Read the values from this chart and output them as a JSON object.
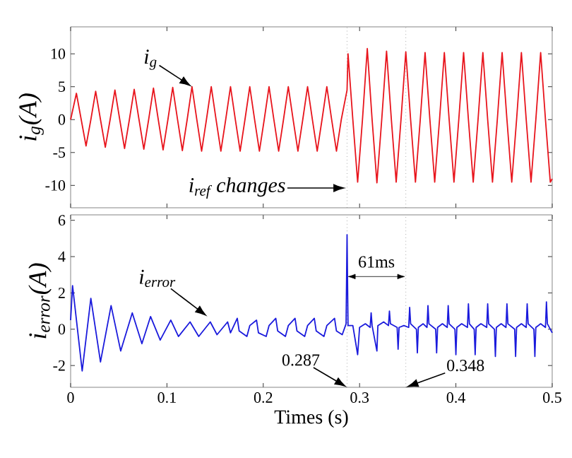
{
  "chart_data": [
    {
      "type": "line",
      "ylabel": "i$_{g}$(A)",
      "xlim": [
        0,
        0.5
      ],
      "ylim": [
        -13.4,
        14.1
      ],
      "xticks": [
        0,
        0.1,
        0.2,
        0.3,
        0.4,
        0.5
      ],
      "yticks": [
        -10,
        -5,
        0,
        5,
        10
      ],
      "tick_labels": "y",
      "series": [
        {
          "color": "#e8141c",
          "x": [
            0,
            0.006,
            0.011,
            0.016,
            0.021,
            0.026,
            0.031,
            0.036,
            0.041,
            0.046,
            0.051,
            0.056,
            0.061,
            0.066,
            0.071,
            0.076,
            0.081,
            0.086,
            0.091,
            0.096,
            0.101,
            0.106,
            0.111,
            0.116,
            0.121,
            0.126,
            0.131,
            0.136,
            0.141,
            0.146,
            0.151,
            0.156,
            0.161,
            0.166,
            0.171,
            0.176,
            0.181,
            0.186,
            0.191,
            0.196,
            0.201,
            0.206,
            0.211,
            0.216,
            0.221,
            0.226,
            0.231,
            0.236,
            0.241,
            0.246,
            0.251,
            0.256,
            0.261,
            0.266,
            0.271,
            0.276,
            0.281,
            0.287,
            0.288,
            0.293,
            0.298,
            0.303,
            0.308,
            0.313,
            0.318,
            0.323,
            0.328,
            0.333,
            0.338,
            0.343,
            0.348,
            0.353,
            0.358,
            0.363,
            0.368,
            0.373,
            0.378,
            0.383,
            0.388,
            0.393,
            0.398,
            0.403,
            0.408,
            0.413,
            0.418,
            0.423,
            0.428,
            0.433,
            0.438,
            0.443,
            0.448,
            0.453,
            0.458,
            0.463,
            0.468,
            0.473,
            0.478,
            0.483,
            0.488,
            0.493,
            0.498,
            0.5
          ],
          "values": [
            0,
            4.0,
            0,
            -4.0,
            0,
            4.3,
            0,
            -4.2,
            0,
            4.5,
            0,
            -4.4,
            0,
            4.6,
            0,
            -4.5,
            0,
            4.8,
            0,
            -4.6,
            0,
            4.9,
            0,
            -4.7,
            0,
            5.0,
            0,
            -4.8,
            0,
            5.0,
            0,
            -4.8,
            0,
            5.0,
            0,
            -4.8,
            0,
            5.0,
            0,
            -4.8,
            0,
            5.0,
            0,
            -4.8,
            0,
            5.0,
            0,
            -4.8,
            0,
            5.0,
            0,
            -4.8,
            0,
            5.0,
            0,
            -4.8,
            0,
            4.5,
            10.0,
            0,
            -9.5,
            0,
            10.8,
            0,
            -9.6,
            0,
            10.4,
            0,
            -9.5,
            0,
            10.3,
            0,
            -9.5,
            0,
            10.2,
            0,
            -9.5,
            0,
            10.2,
            0,
            -9.5,
            0,
            10.2,
            0,
            -9.5,
            0,
            10.2,
            0,
            -9.5,
            0,
            10.2,
            0,
            -9.5,
            0,
            10.2,
            0,
            -9.5,
            0,
            10.2,
            0,
            -9.5,
            -9.0
          ]
        }
      ],
      "ref_lines": [
        {
          "axis": "x",
          "value": 0.287,
          "line_style": "dotted",
          "color": "#808080"
        },
        {
          "axis": "x",
          "value": 0.348,
          "line_style": "dotted",
          "color": "#808080"
        }
      ],
      "annotations": [
        {
          "text": "i$_{g}$",
          "x": 0.126,
          "y": 5.0
        },
        {
          "text": "i$_{ref}$ changes",
          "x": 0.286,
          "y": -10.4
        }
      ]
    },
    {
      "type": "line",
      "xlabel": "Times (s)",
      "ylabel": "i$_{error}$(A)",
      "xlim": [
        0,
        0.5
      ],
      "ylim": [
        -3.2,
        6.3
      ],
      "xticks": [
        0,
        0.1,
        0.2,
        0.3,
        0.4,
        0.5
      ],
      "yticks": [
        -2,
        0,
        2,
        4,
        6
      ],
      "series": [
        {
          "color": "#1a1adc",
          "x": [
            0,
            0.002,
            0.012,
            0.021,
            0.031,
            0.042,
            0.052,
            0.064,
            0.074,
            0.083,
            0.093,
            0.104,
            0.112,
            0.124,
            0.133,
            0.145,
            0.152,
            0.163,
            0.166,
            0.173,
            0.175,
            0.183,
            0.186,
            0.193,
            0.195,
            0.203,
            0.206,
            0.213,
            0.215,
            0.223,
            0.226,
            0.233,
            0.235,
            0.243,
            0.246,
            0.253,
            0.255,
            0.263,
            0.266,
            0.274,
            0.276,
            0.282,
            0.286,
            0.287,
            0.288,
            0.293,
            0.298,
            0.3,
            0.306,
            0.311,
            0.312,
            0.313,
            0.318,
            0.319,
            0.325,
            0.33,
            0.331,
            0.332,
            0.339,
            0.34,
            0.341,
            0.346,
            0.351,
            0.352,
            0.353,
            0.359,
            0.36,
            0.361,
            0.366,
            0.37,
            0.371,
            0.372,
            0.379,
            0.38,
            0.381,
            0.386,
            0.391,
            0.392,
            0.393,
            0.399,
            0.4,
            0.401,
            0.406,
            0.412,
            0.413,
            0.414,
            0.419,
            0.42,
            0.421,
            0.426,
            0.432,
            0.433,
            0.434,
            0.44,
            0.441,
            0.442,
            0.447,
            0.452,
            0.453,
            0.454,
            0.461,
            0.462,
            0.463,
            0.468,
            0.473,
            0.474,
            0.475,
            0.481,
            0.482,
            0.483,
            0.488,
            0.493,
            0.494,
            0.495,
            0.5
          ],
          "values": [
            0.5,
            2.4,
            -2.3,
            1.7,
            -1.8,
            1.3,
            -1.2,
            0.9,
            -0.8,
            0.7,
            -0.6,
            0.5,
            -0.4,
            0.4,
            -0.4,
            0.4,
            -0.3,
            0.4,
            -0.2,
            0.6,
            -0.1,
            -0.4,
            0.2,
            0.5,
            -0.2,
            -0.4,
            0.2,
            0.6,
            -0.1,
            -0.4,
            0.2,
            0.6,
            -0.1,
            -0.4,
            0.2,
            0.6,
            -0.1,
            -0.4,
            0.2,
            0.6,
            -0.1,
            -0.3,
            0.3,
            5.2,
            0.2,
            0.2,
            -1.4,
            0.1,
            0.3,
            0.1,
            0.9,
            0.2,
            -1.2,
            0.2,
            0.4,
            0.2,
            1.0,
            0.3,
            0.1,
            -1.1,
            0.1,
            0.2,
            0.1,
            1.2,
            0.3,
            0.0,
            -1.3,
            0.1,
            0.3,
            0.1,
            1.3,
            0.3,
            0.0,
            -1.3,
            0.1,
            0.3,
            0.1,
            1.3,
            0.3,
            0.0,
            -1.4,
            0.1,
            0.3,
            0.1,
            1.4,
            0.3,
            0.0,
            -1.4,
            0.1,
            0.3,
            0.1,
            1.4,
            0.3,
            0.0,
            -1.5,
            0.1,
            0.3,
            0.1,
            1.4,
            0.3,
            0.0,
            -1.5,
            0.1,
            0.3,
            0.1,
            1.4,
            0.3,
            0.0,
            -1.5,
            0.1,
            0.3,
            0.1,
            1.5,
            0.3,
            -0.2
          ]
        }
      ],
      "ref_lines": [
        {
          "axis": "x",
          "value": 0.287,
          "label": "0.287",
          "line_style": "dotted",
          "color": "#808080"
        },
        {
          "axis": "x",
          "value": 0.348,
          "label": "0.348",
          "line_style": "dotted",
          "color": "#808080"
        }
      ],
      "annotations": [
        {
          "text": "i$_{error}$",
          "x": 0.142,
          "y": 0.7
        },
        "61ms"
      ]
    }
  ]
}
